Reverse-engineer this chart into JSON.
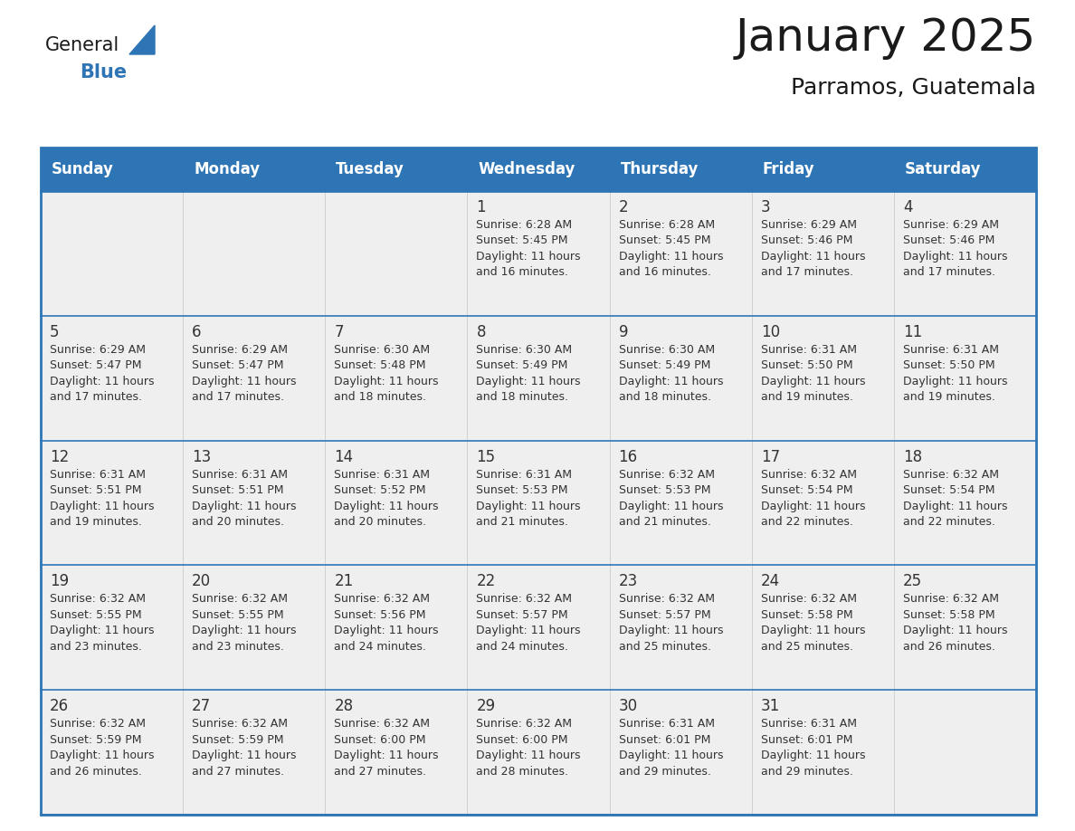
{
  "title": "January 2025",
  "subtitle": "Parramos, Guatemala",
  "header_bg": "#2E75B6",
  "header_text_color": "#FFFFFF",
  "cell_bg": "#EFEFEF",
  "row_divider_color": "#2E75B6",
  "col_divider_color": "#CCCCCC",
  "day_names": [
    "Sunday",
    "Monday",
    "Tuesday",
    "Wednesday",
    "Thursday",
    "Friday",
    "Saturday"
  ],
  "days": [
    {
      "day": 1,
      "col": 3,
      "row": 0,
      "sunrise": "6:28 AM",
      "sunset": "5:45 PM",
      "daylight": "11 hours and 16 minutes."
    },
    {
      "day": 2,
      "col": 4,
      "row": 0,
      "sunrise": "6:28 AM",
      "sunset": "5:45 PM",
      "daylight": "11 hours and 16 minutes."
    },
    {
      "day": 3,
      "col": 5,
      "row": 0,
      "sunrise": "6:29 AM",
      "sunset": "5:46 PM",
      "daylight": "11 hours and 17 minutes."
    },
    {
      "day": 4,
      "col": 6,
      "row": 0,
      "sunrise": "6:29 AM",
      "sunset": "5:46 PM",
      "daylight": "11 hours and 17 minutes."
    },
    {
      "day": 5,
      "col": 0,
      "row": 1,
      "sunrise": "6:29 AM",
      "sunset": "5:47 PM",
      "daylight": "11 hours and 17 minutes."
    },
    {
      "day": 6,
      "col": 1,
      "row": 1,
      "sunrise": "6:29 AM",
      "sunset": "5:47 PM",
      "daylight": "11 hours and 17 minutes."
    },
    {
      "day": 7,
      "col": 2,
      "row": 1,
      "sunrise": "6:30 AM",
      "sunset": "5:48 PM",
      "daylight": "11 hours and 18 minutes."
    },
    {
      "day": 8,
      "col": 3,
      "row": 1,
      "sunrise": "6:30 AM",
      "sunset": "5:49 PM",
      "daylight": "11 hours and 18 minutes."
    },
    {
      "day": 9,
      "col": 4,
      "row": 1,
      "sunrise": "6:30 AM",
      "sunset": "5:49 PM",
      "daylight": "11 hours and 18 minutes."
    },
    {
      "day": 10,
      "col": 5,
      "row": 1,
      "sunrise": "6:31 AM",
      "sunset": "5:50 PM",
      "daylight": "11 hours and 19 minutes."
    },
    {
      "day": 11,
      "col": 6,
      "row": 1,
      "sunrise": "6:31 AM",
      "sunset": "5:50 PM",
      "daylight": "11 hours and 19 minutes."
    },
    {
      "day": 12,
      "col": 0,
      "row": 2,
      "sunrise": "6:31 AM",
      "sunset": "5:51 PM",
      "daylight": "11 hours and 19 minutes."
    },
    {
      "day": 13,
      "col": 1,
      "row": 2,
      "sunrise": "6:31 AM",
      "sunset": "5:51 PM",
      "daylight": "11 hours and 20 minutes."
    },
    {
      "day": 14,
      "col": 2,
      "row": 2,
      "sunrise": "6:31 AM",
      "sunset": "5:52 PM",
      "daylight": "11 hours and 20 minutes."
    },
    {
      "day": 15,
      "col": 3,
      "row": 2,
      "sunrise": "6:31 AM",
      "sunset": "5:53 PM",
      "daylight": "11 hours and 21 minutes."
    },
    {
      "day": 16,
      "col": 4,
      "row": 2,
      "sunrise": "6:32 AM",
      "sunset": "5:53 PM",
      "daylight": "11 hours and 21 minutes."
    },
    {
      "day": 17,
      "col": 5,
      "row": 2,
      "sunrise": "6:32 AM",
      "sunset": "5:54 PM",
      "daylight": "11 hours and 22 minutes."
    },
    {
      "day": 18,
      "col": 6,
      "row": 2,
      "sunrise": "6:32 AM",
      "sunset": "5:54 PM",
      "daylight": "11 hours and 22 minutes."
    },
    {
      "day": 19,
      "col": 0,
      "row": 3,
      "sunrise": "6:32 AM",
      "sunset": "5:55 PM",
      "daylight": "11 hours and 23 minutes."
    },
    {
      "day": 20,
      "col": 1,
      "row": 3,
      "sunrise": "6:32 AM",
      "sunset": "5:55 PM",
      "daylight": "11 hours and 23 minutes."
    },
    {
      "day": 21,
      "col": 2,
      "row": 3,
      "sunrise": "6:32 AM",
      "sunset": "5:56 PM",
      "daylight": "11 hours and 24 minutes."
    },
    {
      "day": 22,
      "col": 3,
      "row": 3,
      "sunrise": "6:32 AM",
      "sunset": "5:57 PM",
      "daylight": "11 hours and 24 minutes."
    },
    {
      "day": 23,
      "col": 4,
      "row": 3,
      "sunrise": "6:32 AM",
      "sunset": "5:57 PM",
      "daylight": "11 hours and 25 minutes."
    },
    {
      "day": 24,
      "col": 5,
      "row": 3,
      "sunrise": "6:32 AM",
      "sunset": "5:58 PM",
      "daylight": "11 hours and 25 minutes."
    },
    {
      "day": 25,
      "col": 6,
      "row": 3,
      "sunrise": "6:32 AM",
      "sunset": "5:58 PM",
      "daylight": "11 hours and 26 minutes."
    },
    {
      "day": 26,
      "col": 0,
      "row": 4,
      "sunrise": "6:32 AM",
      "sunset": "5:59 PM",
      "daylight": "11 hours and 26 minutes."
    },
    {
      "day": 27,
      "col": 1,
      "row": 4,
      "sunrise": "6:32 AM",
      "sunset": "5:59 PM",
      "daylight": "11 hours and 27 minutes."
    },
    {
      "day": 28,
      "col": 2,
      "row": 4,
      "sunrise": "6:32 AM",
      "sunset": "6:00 PM",
      "daylight": "11 hours and 27 minutes."
    },
    {
      "day": 29,
      "col": 3,
      "row": 4,
      "sunrise": "6:32 AM",
      "sunset": "6:00 PM",
      "daylight": "11 hours and 28 minutes."
    },
    {
      "day": 30,
      "col": 4,
      "row": 4,
      "sunrise": "6:31 AM",
      "sunset": "6:01 PM",
      "daylight": "11 hours and 29 minutes."
    },
    {
      "day": 31,
      "col": 5,
      "row": 4,
      "sunrise": "6:31 AM",
      "sunset": "6:01 PM",
      "daylight": "11 hours and 29 minutes."
    }
  ],
  "logo_text_general": "General",
  "logo_text_blue": "Blue",
  "logo_color_general": "#1a1a1a",
  "logo_color_blue": "#2E75B6",
  "logo_triangle_color": "#2E75B6",
  "border_color": "#2E75B6",
  "text_color": "#333333",
  "num_rows": 5,
  "num_cols": 7,
  "title_fontsize": 36,
  "subtitle_fontsize": 18,
  "day_name_fontsize": 12,
  "day_num_fontsize": 12,
  "cell_text_fontsize": 9
}
